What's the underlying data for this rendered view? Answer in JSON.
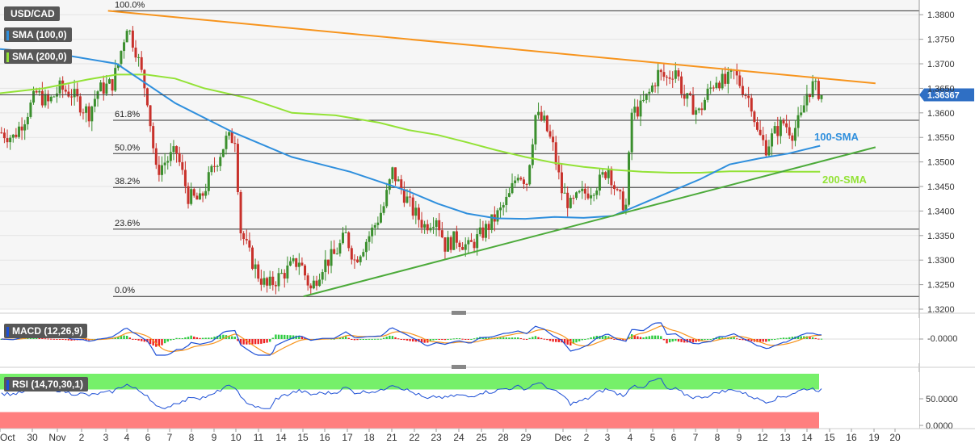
{
  "symbol": "USD/CAD",
  "legend": [
    {
      "label": "SMA (100,0)",
      "color": "#2f8fdd"
    },
    {
      "label": "SMA (200,0)",
      "color": "#93e236"
    }
  ],
  "panes": {
    "macd_label": "MACD (12,26,9)",
    "macd_value": "-0.0000",
    "rsi_label": "RSI (14,70,30,1)",
    "rsi_ticks": [
      "50.0000",
      "0.0000"
    ]
  },
  "colors": {
    "bull": "#3b8f2e",
    "bear": "#c8312b",
    "trendline_resistance": "#f7941d",
    "trendline_support": "#4caa3a",
    "sma100": "#2f8fdd",
    "sma200": "#93e236",
    "price_tag": "#2f6fc4",
    "macd_up": "#2ecc40",
    "macd_down": "#ee2222",
    "rsi_overbought": "#76f06a",
    "rsi_oversold": "#ff7f7f"
  },
  "chart_data": {
    "type": "candlestick",
    "title": "USD/CAD",
    "y_ticks": [
      "1.3800",
      "1.3750",
      "1.3700",
      "1.3650",
      "1.3600",
      "1.3550",
      "1.3500",
      "1.3450",
      "1.3400",
      "1.3350",
      "1.3300",
      "1.3250",
      "1.3200"
    ],
    "ylim": [
      1.32,
      1.383
    ],
    "x_labels": [
      "Oct",
      "30",
      "Nov",
      "2",
      "3",
      "4",
      "6",
      "7",
      "8",
      "9",
      "10",
      "11",
      "14",
      "15",
      "16",
      "17",
      "18",
      "21",
      "22",
      "23",
      "24",
      "25",
      "28",
      "29",
      "Dec",
      "2",
      "3",
      "4",
      "5",
      "6",
      "7",
      "8",
      "9",
      "12",
      "13",
      "14",
      "15",
      "16",
      "19",
      "20"
    ],
    "current_price": "1.36367",
    "fibonacci": [
      {
        "label": "100.0%",
        "value": 1.3808
      },
      {
        "label": "61.8%",
        "value": 1.3585
      },
      {
        "label": "50.0%",
        "value": 1.3517
      },
      {
        "label": "38.2%",
        "value": 1.3448
      },
      {
        "label": "23.6%",
        "value": 1.3363
      },
      {
        "label": "0.0%",
        "value": 1.3226
      }
    ],
    "annotations": [
      {
        "text": "100-SMA",
        "value": 1.355
      },
      {
        "text": "200-SMA",
        "value": 1.3463
      }
    ],
    "close_path": [
      [
        0,
        1.356
      ],
      [
        4,
        1.355
      ],
      [
        8,
        1.359
      ],
      [
        12,
        1.364
      ],
      [
        16,
        1.362
      ],
      [
        20,
        1.365
      ],
      [
        24,
        1.364
      ],
      [
        28,
        1.361
      ],
      [
        30,
        1.36
      ],
      [
        33,
        1.3645
      ],
      [
        38,
        1.366
      ],
      [
        40,
        1.37
      ],
      [
        43,
        1.378
      ],
      [
        46,
        1.373
      ],
      [
        50,
        1.363
      ],
      [
        53,
        1.348
      ],
      [
        56,
        1.35
      ],
      [
        60,
        1.352
      ],
      [
        64,
        1.343
      ],
      [
        68,
        1.342
      ],
      [
        72,
        1.348
      ],
      [
        77,
        1.3545
      ],
      [
        80,
        1.355
      ],
      [
        82,
        1.336
      ],
      [
        85,
        1.331
      ],
      [
        88,
        1.327
      ],
      [
        91,
        1.3245
      ],
      [
        94,
        1.326
      ],
      [
        98,
        1.328
      ],
      [
        102,
        1.33
      ],
      [
        106,
        1.324
      ],
      [
        110,
        1.329
      ],
      [
        114,
        1.331
      ],
      [
        118,
        1.335
      ],
      [
        121,
        1.33
      ],
      [
        124,
        1.333
      ],
      [
        127,
        1.336
      ],
      [
        131,
        1.341
      ],
      [
        134,
        1.348
      ],
      [
        137,
        1.3445
      ],
      [
        141,
        1.34
      ],
      [
        145,
        1.337
      ],
      [
        149,
        1.339
      ],
      [
        152,
        1.333
      ],
      [
        156,
        1.3345
      ],
      [
        160,
        1.3325
      ],
      [
        164,
        1.335
      ],
      [
        167,
        1.337
      ],
      [
        171,
        1.34
      ],
      [
        174,
        1.343
      ],
      [
        177,
        1.348
      ],
      [
        180,
        1.346
      ],
      [
        183,
        1.3595
      ],
      [
        186,
        1.358
      ],
      [
        189,
        1.353
      ],
      [
        192,
        1.344
      ],
      [
        195,
        1.341
      ],
      [
        198,
        1.343
      ],
      [
        201,
        1.344
      ],
      [
        205,
        1.346
      ],
      [
        208,
        1.349
      ],
      [
        211,
        1.343
      ],
      [
        214,
        1.341
      ],
      [
        216,
        1.36
      ],
      [
        219,
        1.361
      ],
      [
        222,
        1.364
      ],
      [
        225,
        1.368
      ],
      [
        228,
        1.367
      ],
      [
        231,
        1.369
      ],
      [
        234,
        1.363
      ],
      [
        236,
        1.362
      ],
      [
        239,
        1.36
      ],
      [
        242,
        1.364
      ],
      [
        245,
        1.367
      ],
      [
        248,
        1.366
      ],
      [
        251,
        1.368
      ],
      [
        254,
        1.365
      ],
      [
        257,
        1.362
      ],
      [
        259,
        1.356
      ],
      [
        262,
        1.353
      ],
      [
        265,
        1.356
      ],
      [
        268,
        1.358
      ],
      [
        271,
        1.356
      ],
      [
        274,
        1.359
      ],
      [
        276,
        1.364
      ],
      [
        278,
        1.3655
      ],
      [
        281,
        1.3637
      ]
    ],
    "sma100": [
      [
        0,
        1.373
      ],
      [
        20,
        1.372
      ],
      [
        40,
        1.37
      ],
      [
        60,
        1.362
      ],
      [
        80,
        1.356
      ],
      [
        100,
        1.351
      ],
      [
        120,
        1.348
      ],
      [
        140,
        1.344
      ],
      [
        150,
        1.3415
      ],
      [
        160,
        1.3395
      ],
      [
        170,
        1.3385
      ],
      [
        180,
        1.3384
      ],
      [
        190,
        1.3388
      ],
      [
        200,
        1.3386
      ],
      [
        210,
        1.339
      ],
      [
        220,
        1.3415
      ],
      [
        230,
        1.344
      ],
      [
        240,
        1.3465
      ],
      [
        250,
        1.3495
      ],
      [
        260,
        1.3507
      ],
      [
        270,
        1.3517
      ],
      [
        281,
        1.3533
      ]
    ],
    "sma200": [
      [
        0,
        1.364
      ],
      [
        15,
        1.365
      ],
      [
        30,
        1.3668
      ],
      [
        40,
        1.3678
      ],
      [
        50,
        1.3678
      ],
      [
        60,
        1.367
      ],
      [
        70,
        1.365
      ],
      [
        85,
        1.363
      ],
      [
        100,
        1.36
      ],
      [
        115,
        1.3595
      ],
      [
        130,
        1.358
      ],
      [
        140,
        1.3565
      ],
      [
        150,
        1.3555
      ],
      [
        160,
        1.354
      ],
      [
        170,
        1.3524
      ],
      [
        180,
        1.351
      ],
      [
        190,
        1.3498
      ],
      [
        200,
        1.349
      ],
      [
        210,
        1.3484
      ],
      [
        220,
        1.348
      ],
      [
        230,
        1.3478
      ],
      [
        240,
        1.3478
      ],
      [
        250,
        1.3481
      ],
      [
        260,
        1.3481
      ],
      [
        270,
        1.348
      ],
      [
        281,
        1.348
      ]
    ],
    "trendline_resistance": [
      [
        37,
        1.3808
      ],
      [
        300,
        1.366
      ]
    ],
    "trendline_support": [
      [
        104,
        1.3226
      ],
      [
        300,
        1.353
      ]
    ],
    "xlim": [
      0,
      315
    ]
  }
}
